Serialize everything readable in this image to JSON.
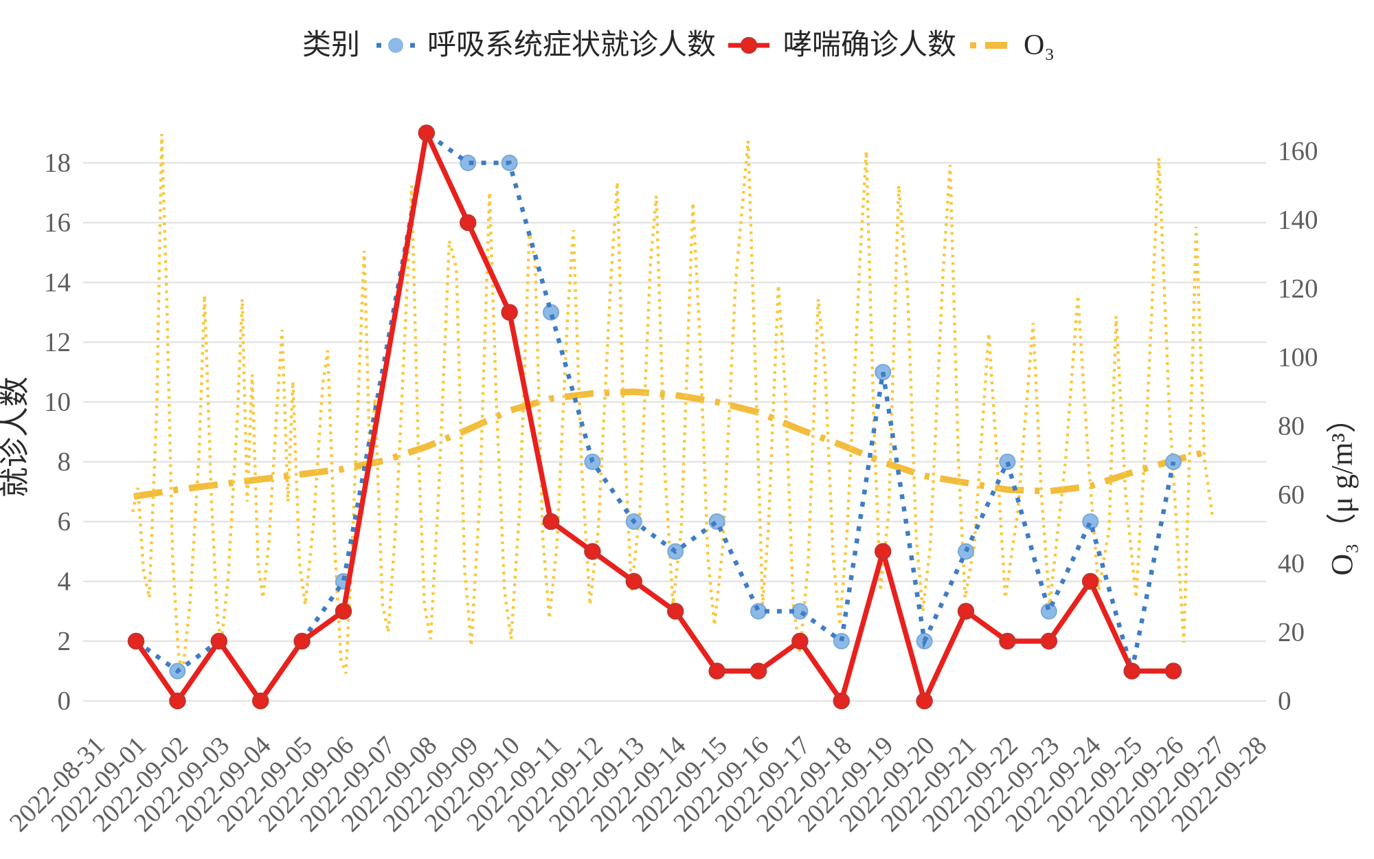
{
  "legend": {
    "title": "类别",
    "items": [
      {
        "label": "呼吸系统症状就诊人数",
        "line_color": "#3E7DC4",
        "marker_color": "#8CB9E6",
        "style": "dotted"
      },
      {
        "label": "哮喘确诊人数",
        "line_color": "#E8211D",
        "marker_color": "#E5251F",
        "style": "solid"
      },
      {
        "label": "O₃",
        "line_color": "#F2BC3C",
        "style": "dash-dot"
      }
    ]
  },
  "chart_data": {
    "type": "line",
    "categories": [
      "2022-08-31",
      "2022-09-01",
      "2022-09-02",
      "2022-09-03",
      "2022-09-04",
      "2022-09-05",
      "2022-09-06",
      "2022-09-07",
      "2022-09-08",
      "2022-09-09",
      "2022-09-10",
      "2022-09-11",
      "2022-09-12",
      "2022-09-13",
      "2022-09-14",
      "2022-09-15",
      "2022-09-16",
      "2022-09-17",
      "2022-09-18",
      "2022-09-19",
      "2022-09-20",
      "2022-09-21",
      "2022-09-22",
      "2022-09-23",
      "2022-09-24",
      "2022-09-25",
      "2022-09-26",
      "2022-09-27",
      "2022-09-28"
    ],
    "left_axis": {
      "label": "就诊人数",
      "ticks": [
        "0",
        "2",
        "4",
        "6",
        "8",
        "10",
        "12",
        "14",
        "16",
        "18"
      ],
      "range": [
        0,
        19.5
      ]
    },
    "right_axis": {
      "label": "O₃（μ g/m³）",
      "ticks": [
        "0",
        "20",
        "40",
        "60",
        "80",
        "100",
        "120",
        "140",
        "160"
      ],
      "range": [
        0,
        170
      ]
    },
    "series": [
      {
        "name": "呼吸系统症状就诊人数",
        "axis": "left",
        "style": "dotted",
        "color": "#3E7DC4",
        "values": [
          null,
          2,
          1,
          2,
          0,
          2,
          4,
          null,
          19,
          18,
          18,
          13,
          8,
          6,
          5,
          6,
          3,
          3,
          2,
          11,
          2,
          5,
          8,
          3,
          6,
          1,
          8,
          null,
          null
        ]
      },
      {
        "name": "哮喘确诊人数",
        "axis": "left",
        "style": "solid",
        "color": "#E8211D",
        "values": [
          null,
          2,
          0,
          2,
          0,
          2,
          3,
          null,
          19,
          16,
          13,
          6,
          5,
          4,
          3,
          1,
          1,
          2,
          0,
          5,
          0,
          3,
          2,
          2,
          4,
          1,
          1,
          null,
          null
        ]
      },
      {
        "name": "O₃",
        "component": "hourly",
        "axis": "right",
        "style": "dotted",
        "color": "#F8C93F",
        "x": [
          0.92,
          1.05,
          1.18,
          1.32,
          1.5,
          1.62,
          1.74,
          1.88,
          2.02,
          2.12,
          2.3,
          2.52,
          2.65,
          2.82,
          2.96,
          3.06,
          3.22,
          3.44,
          3.56,
          3.68,
          3.8,
          3.94,
          4.06,
          4.2,
          4.4,
          4.52,
          4.66,
          4.78,
          4.94,
          5.08,
          5.28,
          5.5,
          5.62,
          5.8,
          5.94,
          6.06,
          6.2,
          6.38,
          6.5,
          6.64,
          6.76,
          6.94,
          7.08,
          7.28,
          7.5,
          7.64,
          7.8,
          7.95,
          8.1,
          8.3,
          8.55,
          8.72,
          8.92,
          9.08,
          9.28,
          9.52,
          9.68,
          9.88,
          10.04,
          10.24,
          10.48,
          10.62,
          10.8,
          10.96,
          11.14,
          11.4,
          11.54,
          11.74,
          11.94,
          12.14,
          12.44,
          12.6,
          12.76,
          12.94,
          13.14,
          13.4,
          13.54,
          13.74,
          13.94,
          14.14,
          14.42,
          14.58,
          14.78,
          14.94,
          15.14,
          15.45,
          15.75,
          15.95,
          16.1,
          16.24,
          16.48,
          16.64,
          16.84,
          17.0,
          17.2,
          17.44,
          17.6,
          17.8,
          17.96,
          18.14,
          18.44,
          18.6,
          18.78,
          18.94,
          19.14,
          19.38,
          19.6,
          19.8,
          19.96,
          20.14,
          20.45,
          20.62,
          20.82,
          20.98,
          21.2,
          21.55,
          21.75,
          21.95,
          22.25,
          22.62,
          22.82,
          23.02,
          23.4,
          23.7,
          23.95,
          24.2,
          24.45,
          24.62,
          24.85,
          25.1,
          25.35,
          25.65,
          25.9,
          26.25,
          26.45,
          26.55,
          26.75,
          26.95
        ],
        "values": [
          55,
          62,
          38,
          30,
          85,
          165,
          118,
          42,
          14,
          8,
          28,
          72,
          118,
          58,
          24,
          17,
          36,
          82,
          117,
          58,
          95,
          40,
          30,
          46,
          86,
          108,
          58,
          93,
          40,
          28,
          52,
          92,
          102,
          42,
          12,
          8,
          42,
          96,
          131,
          68,
          88,
          28,
          20,
          55,
          112,
          150,
          75,
          28,
          18,
          62,
          134,
          126,
          38,
          16,
          58,
          148,
          88,
          32,
          18,
          55,
          136,
          128,
          48,
          24,
          45,
          112,
          137,
          68,
          28,
          50,
          122,
          151,
          78,
          32,
          55,
          128,
          147,
          68,
          28,
          50,
          145,
          108,
          42,
          22,
          45,
          122,
          163,
          88,
          28,
          50,
          121,
          92,
          28,
          14,
          40,
          117,
          98,
          42,
          22,
          50,
          127,
          160,
          82,
          32,
          55,
          150,
          118,
          48,
          26,
          45,
          125,
          156,
          70,
          30,
          45,
          107,
          70,
          30,
          55,
          110,
          60,
          28,
          70,
          118,
          70,
          32,
          50,
          112,
          60,
          30,
          80,
          158,
          85,
          17,
          95,
          138,
          70,
          53
        ]
      },
      {
        "name": "O₃",
        "component": "smoothed",
        "axis": "right",
        "style": "dash-dot",
        "color": "#F2BC3C",
        "x": [
          0.95,
          2,
          3,
          4,
          5,
          6,
          7,
          8,
          9,
          10,
          11,
          12,
          13,
          14,
          15,
          16,
          17,
          18,
          19,
          20,
          21,
          22,
          23,
          24,
          25,
          26,
          26.8
        ],
        "values": [
          59.5,
          61.5,
          63,
          64.5,
          66,
          67.5,
          70,
          74,
          79,
          84.5,
          88,
          89.5,
          90,
          89,
          87,
          84,
          79,
          74.5,
          69.5,
          65.5,
          63.5,
          61.5,
          61,
          62.5,
          66.5,
          70,
          72.5
        ]
      }
    ]
  }
}
